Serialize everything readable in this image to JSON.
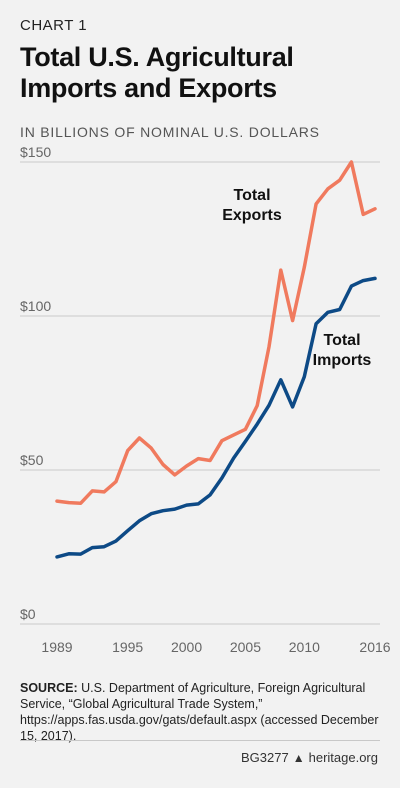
{
  "header": {
    "kicker": "CHART 1",
    "title": "Total U.S. Agricultural Imports and Exports",
    "subtitle": "IN BILLIONS OF NOMINAL U.S. DOLLARS"
  },
  "colors": {
    "exports": "#f07a5e",
    "imports": "#0d4a86",
    "grid": "#c9c9c9",
    "axis_text": "#666666"
  },
  "chart_data": {
    "type": "line",
    "title": "Total U.S. Agricultural Imports and Exports",
    "subtitle": "IN BILLIONS OF NOMINAL U.S. DOLLARS",
    "xlabel": "",
    "ylabel": "",
    "xlim": [
      1989,
      2016
    ],
    "ylim": [
      0,
      150
    ],
    "grid": true,
    "x_ticks": [
      1989,
      1995,
      2000,
      2005,
      2010,
      2016
    ],
    "x_tick_labels": [
      "1989",
      "1995",
      "2000",
      "2005",
      "2010",
      "2016"
    ],
    "y_ticks": [
      0,
      50,
      100,
      150
    ],
    "y_tick_labels": [
      "$0",
      "$50",
      "$100",
      "$150"
    ],
    "x": [
      1989,
      1990,
      1991,
      1992,
      1993,
      1994,
      1995,
      1996,
      1997,
      1998,
      1999,
      2000,
      2001,
      2002,
      2003,
      2004,
      2005,
      2006,
      2007,
      2008,
      2009,
      2010,
      2011,
      2012,
      2013,
      2014,
      2015,
      2016
    ],
    "series": [
      {
        "name": "Total Exports",
        "label_lines": [
          "Total",
          "Exports"
        ],
        "color": "#f07a5e",
        "values": [
          39.9,
          39.4,
          39.2,
          43.2,
          42.9,
          46.2,
          56.3,
          60.4,
          57.1,
          51.8,
          48.4,
          51.3,
          53.7,
          53.1,
          59.5,
          61.4,
          63.2,
          70.9,
          90.0,
          114.9,
          98.5,
          115.8,
          136.4,
          141.3,
          144.1,
          150.0,
          133.0,
          134.8
        ]
      },
      {
        "name": "Total Imports",
        "label_lines": [
          "Total",
          "Imports"
        ],
        "color": "#0d4a86",
        "values": [
          21.8,
          22.8,
          22.7,
          24.8,
          25.1,
          26.9,
          30.3,
          33.5,
          35.8,
          36.8,
          37.3,
          38.6,
          39.0,
          41.9,
          47.4,
          53.9,
          59.3,
          64.9,
          71.0,
          79.3,
          70.5,
          80.3,
          97.5,
          101.2,
          102.1,
          109.7,
          111.5,
          112.2
        ]
      }
    ]
  },
  "source": {
    "label": "SOURCE:",
    "text": " U.S. Department of Agriculture, Foreign Agricultural Service, “Global Agricultural Trade System,” https://apps.fas.usda.gov/gats/default.aspx (accessed December 15, 2017)."
  },
  "footer": {
    "code": "BG3277",
    "site": "heritage.org"
  }
}
